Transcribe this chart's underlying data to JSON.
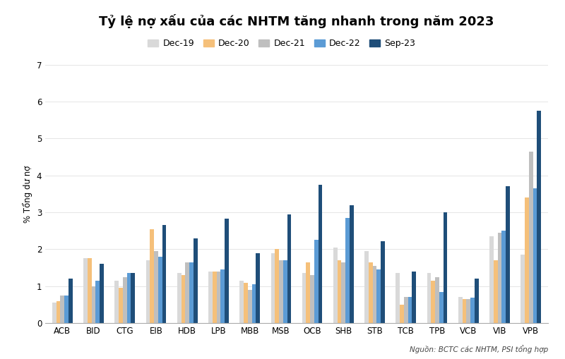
{
  "title": "Tỷ lệ nợ xấu của các NHTM tăng nhanh trong năm 2023",
  "ylabel": "% Tổng dư nợ",
  "source": "Nguồn: BCTC các NHTM, PSI tổng hợp",
  "categories": [
    "ACB",
    "BID",
    "CTG",
    "EIB",
    "HDB",
    "LPB",
    "MBB",
    "MSB",
    "OCB",
    "SHB",
    "STB",
    "TCB",
    "TPB",
    "VCB",
    "VIB",
    "VPB"
  ],
  "series": {
    "Dec-19": [
      0.55,
      1.75,
      1.15,
      1.7,
      1.35,
      1.4,
      1.15,
      1.9,
      1.35,
      2.05,
      1.95,
      1.35,
      1.35,
      0.7,
      2.35,
      1.85
    ],
    "Dec-20": [
      0.6,
      1.75,
      0.95,
      2.55,
      1.3,
      1.4,
      1.1,
      2.0,
      1.65,
      1.7,
      1.65,
      0.5,
      1.15,
      0.65,
      1.7,
      3.4
    ],
    "Dec-21": [
      0.75,
      1.0,
      1.25,
      1.95,
      1.65,
      1.4,
      0.9,
      1.7,
      1.3,
      1.65,
      1.55,
      0.7,
      1.25,
      0.65,
      2.45,
      4.65
    ],
    "Dec-22": [
      0.75,
      1.15,
      1.35,
      1.8,
      1.65,
      1.45,
      1.05,
      1.7,
      2.25,
      2.85,
      1.45,
      0.7,
      0.85,
      0.68,
      2.5,
      3.65
    ],
    "Sep-23": [
      1.2,
      1.6,
      1.35,
      2.65,
      2.3,
      2.82,
      1.9,
      2.95,
      3.75,
      3.2,
      2.22,
      1.4,
      3.0,
      1.2,
      3.7,
      5.75
    ]
  },
  "colors": {
    "Dec-19": "#d9d9d9",
    "Dec-20": "#f5c07a",
    "Dec-21": "#bfbfbf",
    "Dec-22": "#5b9bd5",
    "Sep-23": "#1f4e79"
  },
  "ylim": [
    0,
    7
  ],
  "yticks": [
    0,
    1,
    2,
    3,
    4,
    5,
    6,
    7
  ],
  "background_color": "#ffffff",
  "title_fontsize": 13,
  "legend_fontsize": 9,
  "axis_fontsize": 8.5
}
